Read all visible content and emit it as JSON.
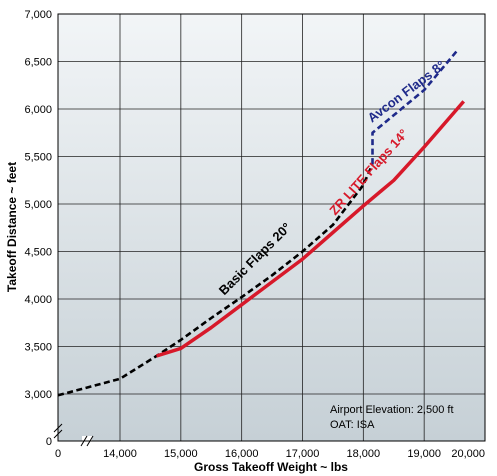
{
  "chart_data": {
    "type": "line",
    "xlabel": "Gross Takeoff Weight ~ lbs",
    "ylabel": "Takeoff Distance ~ feet",
    "x_ticks": [
      {
        "value": 0,
        "label": "0"
      },
      {
        "value": 14000,
        "label": "14,000"
      },
      {
        "value": 15000,
        "label": "15,000"
      },
      {
        "value": 16000,
        "label": "16,000"
      },
      {
        "value": 17000,
        "label": "17,000"
      },
      {
        "value": 18000,
        "label": "18,000"
      },
      {
        "value": 19000,
        "label": "19,000"
      },
      {
        "value": 20000,
        "label": "20,000"
      }
    ],
    "y_ticks": [
      {
        "value": 0,
        "label": "0"
      },
      {
        "value": 3000,
        "label": "3,000"
      },
      {
        "value": 3500,
        "label": "3,500"
      },
      {
        "value": 4000,
        "label": "4,000"
      },
      {
        "value": 4500,
        "label": "4,500"
      },
      {
        "value": 5000,
        "label": "5,000"
      },
      {
        "value": 5500,
        "label": "5,500"
      },
      {
        "value": 6000,
        "label": "6,000"
      },
      {
        "value": 6500,
        "label": "6,500"
      },
      {
        "value": 7000,
        "label": "7,000"
      }
    ],
    "axis_breaks": {
      "x": true,
      "y": true
    },
    "grid": true,
    "series": [
      {
        "name": "Basic Flaps 20°",
        "color": "#000000",
        "style": "dashed",
        "points": [
          [
            13000,
            2920
          ],
          [
            14000,
            3160
          ],
          [
            14600,
            3400
          ],
          [
            15000,
            3570
          ],
          [
            15500,
            3800
          ],
          [
            16000,
            4020
          ],
          [
            16500,
            4250
          ],
          [
            17000,
            4500
          ],
          [
            17500,
            4780
          ],
          [
            18000,
            5200
          ],
          [
            18150,
            5420
          ]
        ]
      },
      {
        "name": "Avcon Flaps 8°",
        "color": "#1f2a8a",
        "style": "dashed",
        "points": [
          [
            18150,
            5420
          ],
          [
            18150,
            5750
          ],
          [
            19000,
            6200
          ],
          [
            19550,
            6620
          ]
        ]
      },
      {
        "name": "ZR LITE Flaps 14°",
        "color": "#d7192a",
        "style": "solid",
        "points": [
          [
            14600,
            3400
          ],
          [
            15000,
            3480
          ],
          [
            15500,
            3700
          ],
          [
            16000,
            3940
          ],
          [
            16500,
            4180
          ],
          [
            17000,
            4420
          ],
          [
            17500,
            4700
          ],
          [
            18000,
            4980
          ],
          [
            18500,
            5250
          ],
          [
            19000,
            5600
          ],
          [
            19650,
            6080
          ]
        ]
      }
    ],
    "annotations": [
      "Airport Elevation: 2,500 ft",
      "OAT: ISA"
    ]
  }
}
